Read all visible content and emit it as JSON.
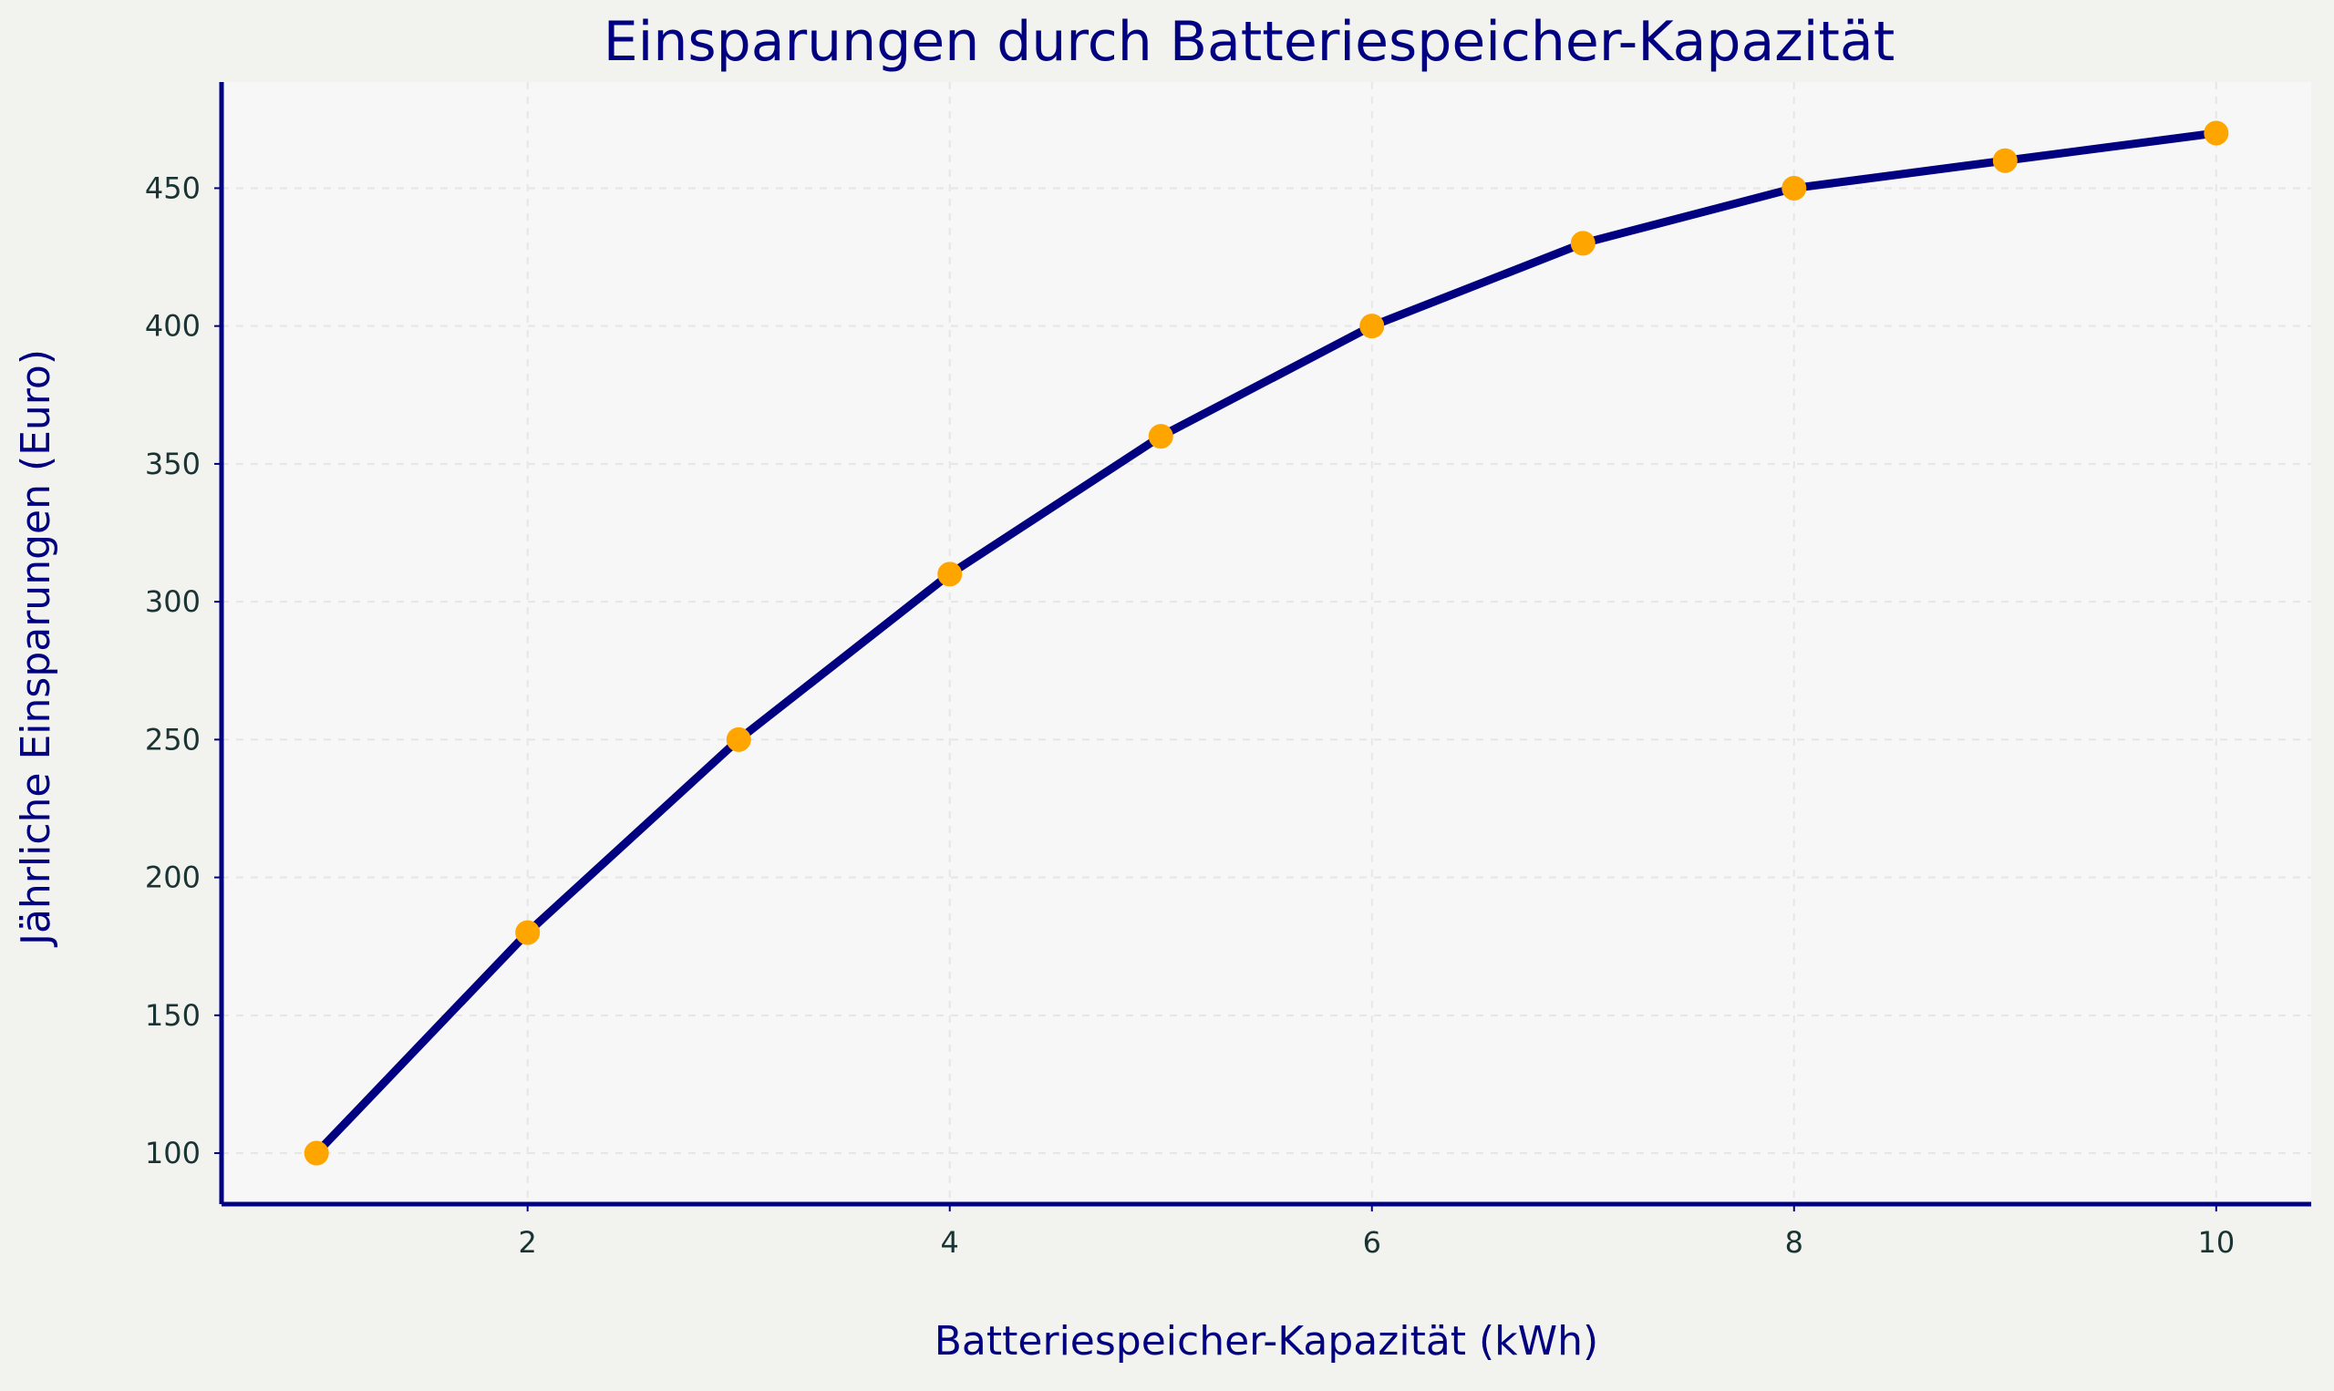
{
  "chart_data": {
    "type": "line",
    "title": "Einsparungen durch Batteriespeicher-Kapazität",
    "xlabel": "Batteriespeicher-Kapazität (kWh)",
    "ylabel": "Jährliche Einsparungen (Euro)",
    "x": [
      1,
      2,
      3,
      4,
      5,
      6,
      7,
      8,
      9,
      10
    ],
    "series": [
      {
        "values": [
          100,
          180,
          250,
          310,
          360,
          400,
          430,
          450,
          460,
          470
        ]
      }
    ],
    "xlim": [
      0.55,
      10.45
    ],
    "ylim": [
      81.5,
      488.5
    ],
    "xticks": [
      2,
      4,
      6,
      8,
      10
    ],
    "yticks": [
      100,
      150,
      200,
      250,
      300,
      350,
      400,
      450
    ],
    "grid": true,
    "legend": "none",
    "colors": {
      "line": "#000080",
      "marker": "#ffa500",
      "axis": "#000080",
      "title": "#000080",
      "tick_label": "#1a3333",
      "plot_background": "#f7f7f7",
      "figure_background": "#f2f2ee",
      "grid": "#e6e6e6"
    }
  }
}
